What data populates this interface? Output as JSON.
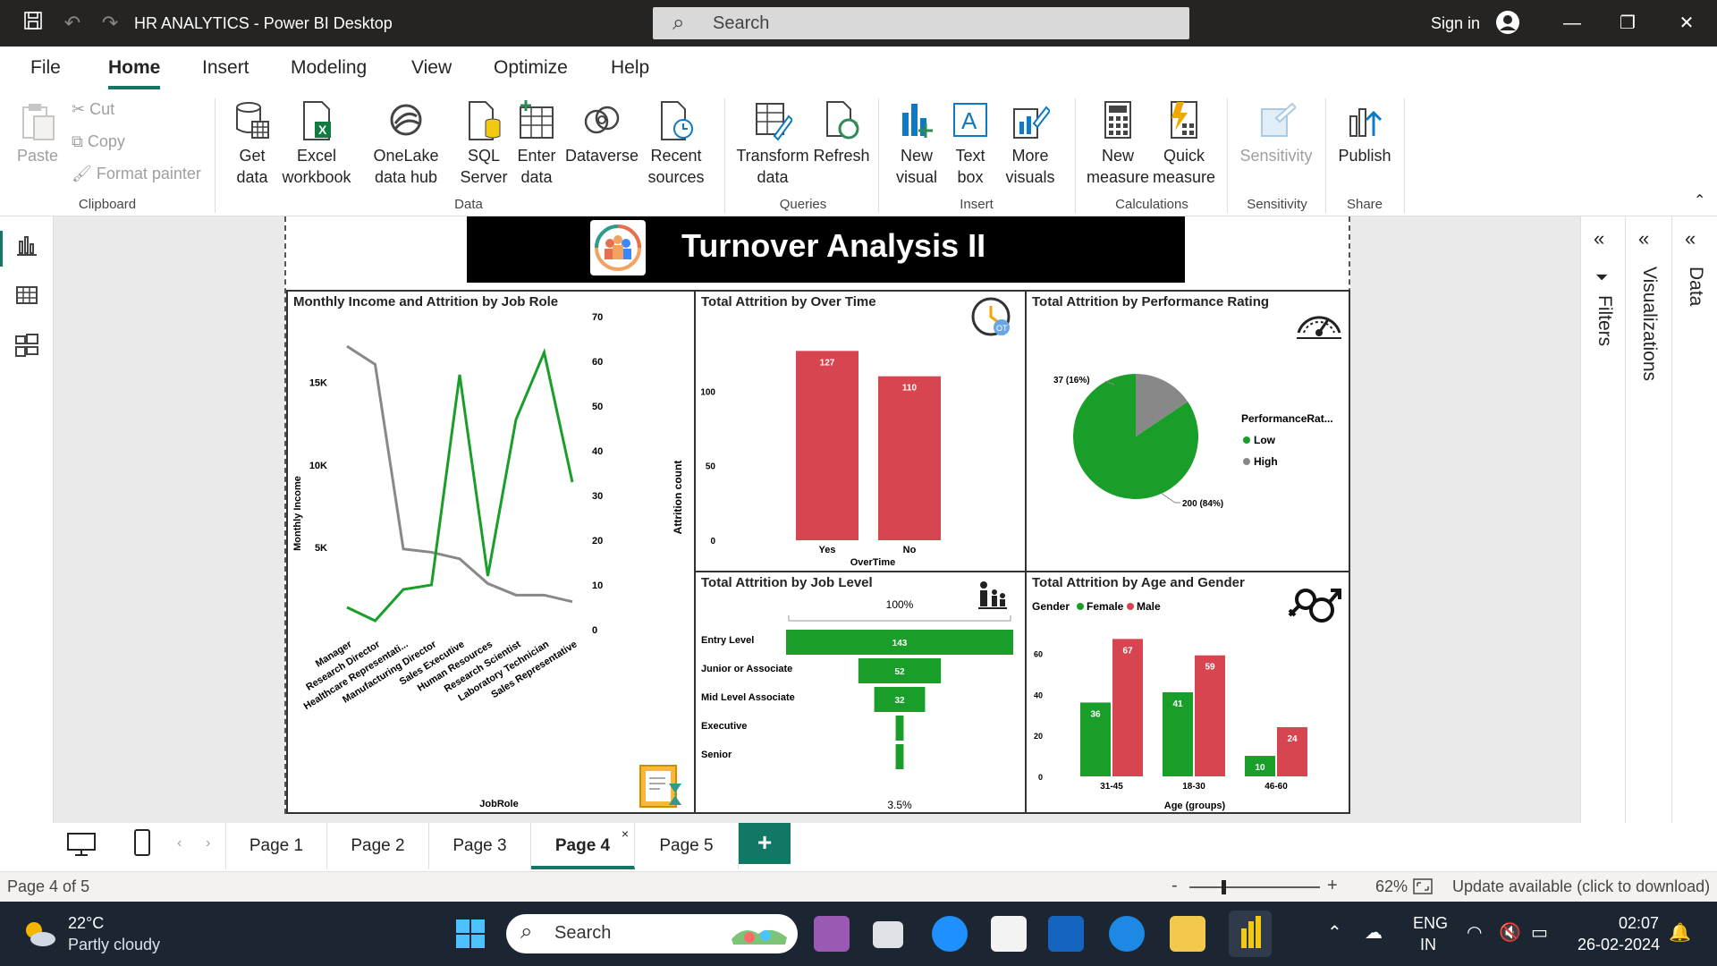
{
  "window": {
    "title": "HR ANALYTICS - Power BI Desktop",
    "search_placeholder": "Search",
    "sign_in": "Sign in"
  },
  "menu": [
    "File",
    "Home",
    "Insert",
    "Modeling",
    "View",
    "Optimize",
    "Help"
  ],
  "ribbon": {
    "paste": "Paste",
    "cut": "Cut",
    "copy": "Copy",
    "format_painter": "Format painter",
    "get_data": "Get data",
    "excel": "Excel workbook",
    "onelake": "OneLake data hub",
    "sql": "SQL Server",
    "enter_data": "Enter data",
    "dataverse": "Dataverse",
    "recent": "Recent sources",
    "transform": "Transform data",
    "refresh": "Refresh",
    "new_visual": "New visual",
    "text_box": "Text box",
    "more_visuals": "More visuals",
    "new_measure": "New measure",
    "quick_measure": "Quick measure",
    "sensitivity": "Sensitivity",
    "publish": "Publish",
    "groups": [
      "Clipboard",
      "Data",
      "Queries",
      "Insert",
      "Calculations",
      "Sensitivity",
      "Share"
    ]
  },
  "report": {
    "banner_title": "Turnover Analysis II",
    "v1": {
      "title": "Monthly Income and Attrition by Job Role",
      "ylabel_left": "Monthly Income",
      "ylabel_right": "Attrition count",
      "xlabel": "JobRole"
    },
    "v2": {
      "title": "Total Attrition by Over Time",
      "xlabel": "OverTime"
    },
    "v3": {
      "title": "Total Attrition by Performance Rating",
      "legend_title": "PerformanceRat...",
      "legend": [
        "Low",
        "High"
      ],
      "label_low": "200 (84%)",
      "label_high": "37 (16%)"
    },
    "v4": {
      "title": "Total Attrition by Job Level",
      "top_label": "100%",
      "bottom_label": "3.5%"
    },
    "v5": {
      "title": "Total Attrition by Age and Gender",
      "legend_title": "Gender",
      "legend": [
        "Female",
        "Male"
      ],
      "xlabel": "Age (groups)"
    }
  },
  "chart_data": [
    {
      "type": "line",
      "title": "Monthly Income and Attrition by Job Role",
      "categories": [
        "Manager",
        "Research Director",
        "Healthcare Representati...",
        "Manufacturing Director",
        "Sales Executive",
        "Human Resources",
        "Research Scientist",
        "Laboratory Technician",
        "Sales Representative"
      ],
      "series": [
        {
          "name": "Monthly Income",
          "axis": "left",
          "values": [
            17200,
            16100,
            4900,
            4700,
            4300,
            2800,
            2100,
            2100,
            1700
          ]
        },
        {
          "name": "Attrition count",
          "axis": "right",
          "values": [
            5,
            2,
            9,
            10,
            57,
            12,
            47,
            62,
            33
          ]
        }
      ],
      "ylim_left": [
        0,
        19000
      ],
      "ylim_right": [
        0,
        70
      ],
      "yticks_left": [
        "5K",
        "10K",
        "15K"
      ],
      "yticks_right": [
        0,
        10,
        20,
        30,
        40,
        50,
        60,
        70
      ]
    },
    {
      "type": "bar",
      "title": "Total Attrition by Over Time",
      "categories": [
        "Yes",
        "No"
      ],
      "values": [
        127,
        110
      ],
      "ylim": [
        0,
        150
      ],
      "yticks": [
        0,
        50,
        100
      ]
    },
    {
      "type": "pie",
      "title": "Total Attrition by Performance Rating",
      "categories": [
        "Low",
        "High"
      ],
      "values": [
        200,
        37
      ],
      "percent": [
        84,
        16
      ]
    },
    {
      "type": "bar",
      "title": "Total Attrition by Job Level",
      "orientation": "horizontal",
      "categories": [
        "Entry Level",
        "Junior or Associate",
        "Mid Level Associate",
        "Executive",
        "Senior"
      ],
      "values": [
        143,
        52,
        32,
        5,
        5
      ]
    },
    {
      "type": "bar",
      "title": "Total Attrition by Age and Gender",
      "categories": [
        "31-45",
        "18-30",
        "46-60"
      ],
      "series": [
        {
          "name": "Female",
          "values": [
            36,
            41,
            10
          ]
        },
        {
          "name": "Male",
          "values": [
            67,
            59,
            24
          ]
        }
      ],
      "ylim": [
        0,
        75
      ],
      "yticks": [
        0,
        20,
        40,
        60
      ]
    }
  ],
  "right_panels": [
    "Filters",
    "Visualizations",
    "Data"
  ],
  "tabs": [
    "Page 1",
    "Page 2",
    "Page 3",
    "Page 4",
    "Page 5"
  ],
  "status": {
    "page": "Page 4 of 5",
    "zoom": "62%",
    "update": "Update available (click to download)"
  },
  "taskbar": {
    "temp": "22°C",
    "weather": "Partly cloudy",
    "search": "Search",
    "lang1": "ENG",
    "lang2": "IN",
    "time": "02:07",
    "date": "26-02-2024"
  },
  "colors": {
    "green": "#1a9e2a",
    "red": "#d64550",
    "gray": "#888888",
    "accent": "#117865"
  }
}
